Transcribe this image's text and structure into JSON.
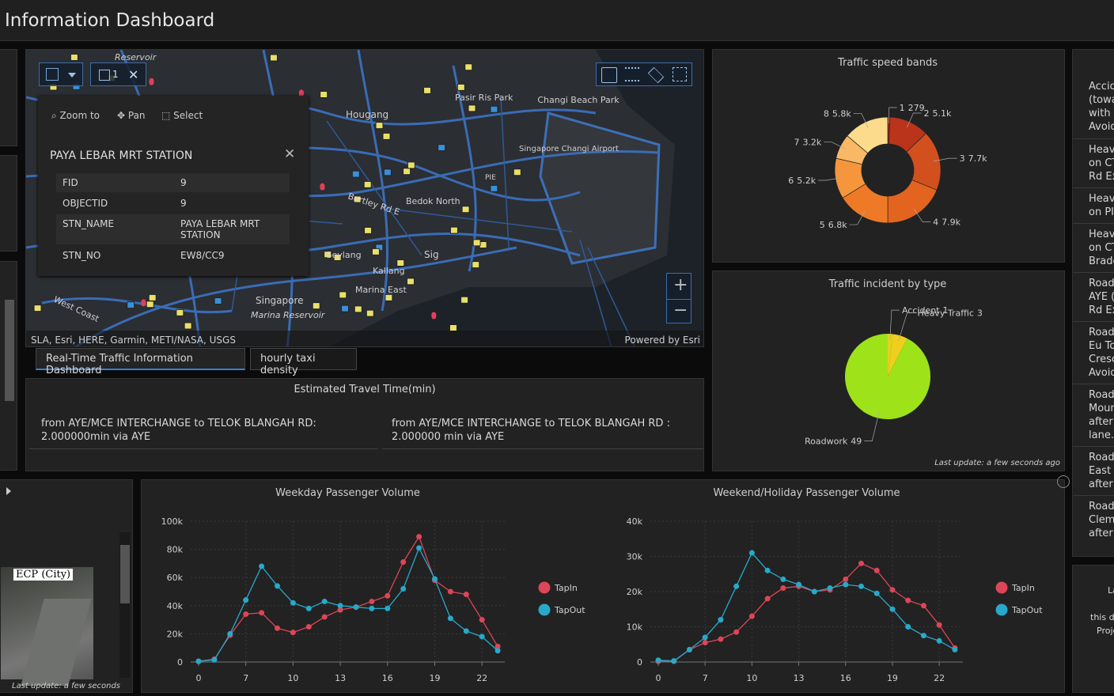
{
  "header": {
    "title": "Information Dashboard"
  },
  "map": {
    "toolbar_count": "1",
    "labels": [
      "Reservoir",
      "Hougang",
      "Pasir Ris Park",
      "Changi Beach Park",
      "Singapore Changi Airport",
      "Bartley Rd E",
      "Bedok North",
      "Geylang",
      "Kallang",
      "Marina East",
      "Marina Reservoir",
      "Singapore",
      "PIE",
      "West Coast",
      "Sig"
    ],
    "attribution": "SLA, Esri, HERE, Garmin, METI/NASA, USGS",
    "powered_by": "Powered by Esri"
  },
  "popup": {
    "tools": [
      "Zoom to",
      "Pan",
      "Select"
    ],
    "title": "PAYA LEBAR MRT STATION",
    "rows": [
      [
        "FID",
        "9"
      ],
      [
        "OBJECTID",
        "9"
      ],
      [
        "STN_NAME",
        "PAYA LEBAR MRT STATION"
      ],
      [
        "STN_NO",
        "EW8/CC9"
      ]
    ]
  },
  "tabs": [
    "Real-Time Traffic Information Dashboard",
    "hourly taxi density"
  ],
  "travel_time": {
    "title": "Estimated Travel Time(min)",
    "entries": [
      "from AYE/MCE INTERCHANGE to TELOK BLANGAH RD: 2.000000min via AYE",
      "from AYE/MCE INTERCHANGE to TELOK BLANGAH RD : 2.000000 min via AYE"
    ]
  },
  "chart_data": [
    {
      "type": "donut",
      "title": "Traffic speed bands",
      "categories": [
        "1",
        "2",
        "3",
        "4",
        "5",
        "6",
        "7",
        "8"
      ],
      "values": [
        279,
        5100,
        7700,
        7900,
        6800,
        5200,
        3200,
        5800
      ],
      "value_labels": [
        "279",
        "5.1k",
        "7.7k",
        "7.9k",
        "6.8k",
        "5.2k",
        "3.2k",
        "5.8k"
      ],
      "colors": [
        "#a82a14",
        "#b9341a",
        "#d2501d",
        "#e3641f",
        "#ee7a27",
        "#f5963c",
        "#f9b866",
        "#fcdc8c"
      ]
    },
    {
      "type": "pie",
      "title": "Traffic incident by type",
      "categories": [
        "Accident",
        "Heavy Traffic",
        "Roadwork"
      ],
      "values": [
        1,
        3,
        49
      ],
      "colors": [
        "#e8d21e",
        "#f0cf1c",
        "#9ee21a"
      ],
      "footnote": "Last update: a few seconds ago"
    },
    {
      "type": "line",
      "title": "Weekday Passenger Volume",
      "categories": [
        "0",
        null,
        null,
        "7",
        null,
        null,
        "10",
        null,
        null,
        "13",
        null,
        null,
        "16",
        null,
        null,
        "19",
        null,
        null,
        "22",
        null
      ],
      "ylim": [
        0,
        100000
      ],
      "yticks": [
        0,
        {
          "value": 20000,
          "label": "20k"
        },
        {
          "value": 40000,
          "label": "40k"
        },
        {
          "value": 60000,
          "label": "60k"
        },
        {
          "value": 80000,
          "label": "80k"
        },
        {
          "value": 100000,
          "label": "100k"
        }
      ],
      "grid": true,
      "series": [
        {
          "name": "TapIn",
          "color": "#dc4658",
          "values": [
            500,
            2000,
            19000,
            34000,
            35000,
            24000,
            21000,
            25000,
            32000,
            37000,
            39000,
            43000,
            47000,
            71000,
            89000,
            58000,
            50000,
            48000,
            30000,
            11000
          ]
        },
        {
          "name": "TapOut",
          "color": "#28a9c9",
          "values": [
            500,
            1500,
            20000,
            44000,
            68000,
            54000,
            42000,
            38000,
            43000,
            40000,
            39000,
            38000,
            38000,
            52000,
            81000,
            59000,
            31000,
            22000,
            18000,
            8000
          ]
        }
      ]
    },
    {
      "type": "line",
      "title": "Weekend/Holiday Passenger Volume",
      "categories": [
        "0",
        null,
        null,
        "7",
        null,
        null,
        "10",
        null,
        null,
        "13",
        null,
        null,
        "16",
        null,
        null,
        "19",
        null,
        null,
        "22",
        null
      ],
      "ylim": [
        0,
        40000
      ],
      "yticks": [
        0,
        {
          "value": 10000,
          "label": "10k"
        },
        {
          "value": 20000,
          "label": "20k"
        },
        {
          "value": 30000,
          "label": "30k"
        },
        {
          "value": 40000,
          "label": "40k"
        }
      ],
      "grid": true,
      "series": [
        {
          "name": "TapIn",
          "color": "#dc4658",
          "values": [
            200,
            200,
            3500,
            5500,
            6500,
            8500,
            13000,
            18000,
            21000,
            21500,
            20000,
            20500,
            23500,
            28000,
            26000,
            20500,
            17500,
            16000,
            10500,
            4000
          ]
        },
        {
          "name": "TapOut",
          "color": "#28a9c9",
          "values": [
            500,
            300,
            3500,
            7000,
            12000,
            21500,
            31000,
            26000,
            23500,
            22000,
            20000,
            21000,
            22000,
            21500,
            19500,
            15000,
            10000,
            7500,
            6000,
            3500
          ]
        }
      ]
    }
  ],
  "camera": {
    "label": "ECP (City)",
    "footnote": "Last update: a few seconds ago"
  },
  "incidents": [
    [
      "Accid",
      "(towa",
      "with c",
      "Avoid"
    ],
    [
      "Heav",
      "on CT",
      "Rd Ex"
    ],
    [
      "Heav",
      "on PI"
    ],
    [
      "Heav",
      "on CT",
      "Brade"
    ],
    [
      "Road",
      "AYE (",
      "Rd Ex"
    ],
    [
      "Road",
      "Eu To",
      "Cresc",
      "Avoid"
    ],
    [
      "Road",
      "Moun",
      "after",
      "lane."
    ],
    [
      "Road",
      "East C",
      "after"
    ],
    [
      "Road",
      "Clem",
      "after"
    ]
  ],
  "side_note": [
    "La",
    "this d",
    "Proje"
  ]
}
